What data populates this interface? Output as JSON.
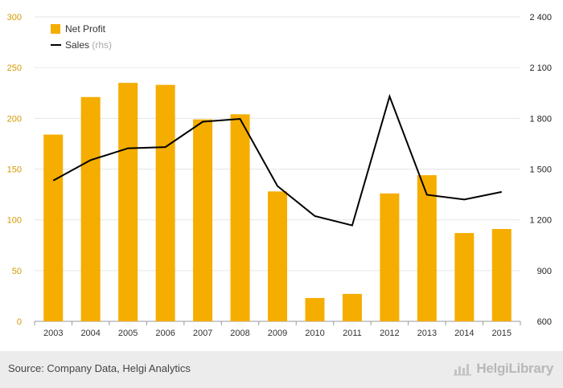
{
  "chart_data": {
    "type": "bar",
    "categories": [
      "2003",
      "2004",
      "2005",
      "2006",
      "2007",
      "2008",
      "2009",
      "2010",
      "2011",
      "2012",
      "2013",
      "2014",
      "2015"
    ],
    "series": [
      {
        "name": "Net Profit",
        "type": "bar",
        "axis": "left",
        "color": "#F5AD00",
        "values": [
          184,
          221,
          235,
          233,
          199,
          204,
          128,
          23,
          27,
          126,
          144,
          87,
          91
        ]
      },
      {
        "name": "Sales",
        "name_suffix": "(rhs)",
        "type": "line",
        "axis": "right",
        "color": "#000000",
        "values": [
          1432,
          1553,
          1623,
          1630,
          1780,
          1797,
          1400,
          1222,
          1167,
          1930,
          1348,
          1320,
          1365
        ]
      }
    ],
    "yleft": {
      "ylim": [
        0,
        300
      ],
      "ticks": [
        "0",
        "50",
        "100",
        "150",
        "200",
        "250",
        "300"
      ]
    },
    "yright": {
      "ylim": [
        600,
        2400
      ],
      "ticks": [
        "600",
        "900",
        "1 200",
        "1 500",
        "1 800",
        "2 100",
        "2 400"
      ]
    },
    "grid": true,
    "legend": "top-left"
  },
  "footer": {
    "source": "Source: Company Data, Helgi Analytics",
    "brand": "HelgiLibrary"
  }
}
